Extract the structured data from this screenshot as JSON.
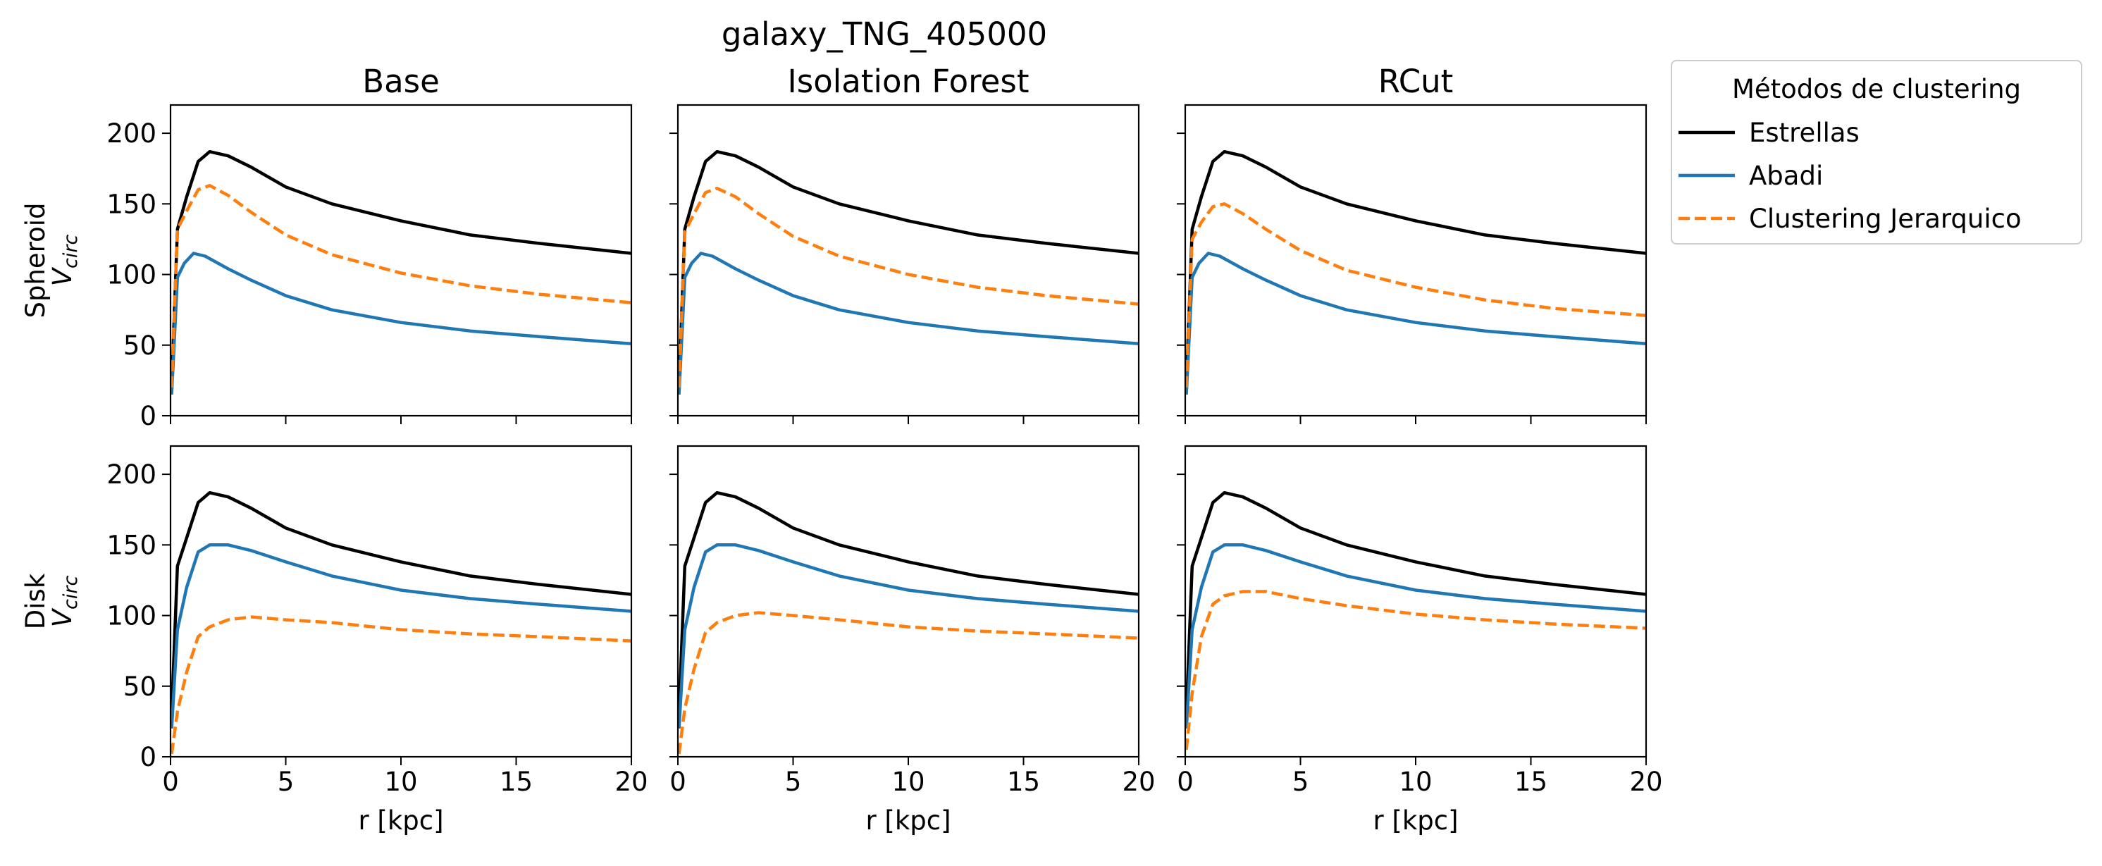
{
  "suptitle": "galaxy_TNG_405000",
  "legend": {
    "title": "Métodos de clustering",
    "placement": "outside-right-top",
    "entries": [
      {
        "label": "Estrellas",
        "color": "#000000",
        "style": "solid"
      },
      {
        "label": "Abadi",
        "color": "#1f77b4",
        "style": "solid"
      },
      {
        "label": "Clustering Jerarquico",
        "color": "#ff7f0e",
        "style": "dashed"
      }
    ]
  },
  "columns": [
    "Base",
    "Isolation Forest",
    "RCut"
  ],
  "rows": [
    {
      "label": "Spheroid",
      "ylabel_math": "V",
      "ylabel_sub": "circ"
    },
    {
      "label": "Disk",
      "ylabel_math": "V",
      "ylabel_sub": "circ"
    }
  ],
  "xlabel": "r [kpc]",
  "chart_data": {
    "type": "line",
    "layout": "2x3 subplots, shared axes",
    "xlim": [
      0,
      20
    ],
    "ylim": [
      0,
      220
    ],
    "xticks": [
      0,
      5,
      10,
      15,
      20
    ],
    "yticks": [
      0,
      50,
      100,
      150,
      200
    ],
    "grid": false,
    "panels": [
      {
        "row": "Spheroid",
        "column": "Base",
        "series": [
          {
            "name": "Estrellas",
            "x": [
              0.05,
              0.3,
              0.7,
              1.2,
              1.7,
              2.5,
              3.5,
              5,
              7,
              10,
              13,
              16,
              20
            ],
            "values": [
              20,
              132,
              155,
              180,
              187,
              184,
              176,
              162,
              150,
              138,
              128,
              122,
              115
            ]
          },
          {
            "name": "Abadi",
            "x": [
              0.05,
              0.3,
              0.6,
              1.0,
              1.5,
              2.5,
              3.5,
              5,
              7,
              10,
              13,
              16,
              20
            ],
            "values": [
              15,
              98,
              108,
              115,
              113,
              104,
              96,
              85,
              75,
              66,
              60,
              56,
              51
            ]
          },
          {
            "name": "Clustering Jerarquico",
            "x": [
              0.05,
              0.3,
              0.7,
              1.2,
              1.7,
              2.5,
              3.5,
              5,
              7,
              10,
              13,
              16,
              20
            ],
            "values": [
              20,
              132,
              145,
              160,
              163,
              156,
              144,
              128,
              114,
              101,
              92,
              86,
              80
            ]
          }
        ]
      },
      {
        "row": "Spheroid",
        "column": "Isolation Forest",
        "series": [
          {
            "name": "Estrellas",
            "x": [
              0.05,
              0.3,
              0.7,
              1.2,
              1.7,
              2.5,
              3.5,
              5,
              7,
              10,
              13,
              16,
              20
            ],
            "values": [
              20,
              132,
              155,
              180,
              187,
              184,
              176,
              162,
              150,
              138,
              128,
              122,
              115
            ]
          },
          {
            "name": "Abadi",
            "x": [
              0.05,
              0.3,
              0.6,
              1.0,
              1.5,
              2.5,
              3.5,
              5,
              7,
              10,
              13,
              16,
              20
            ],
            "values": [
              15,
              98,
              108,
              115,
              113,
              104,
              96,
              85,
              75,
              66,
              60,
              56,
              51
            ]
          },
          {
            "name": "Clustering Jerarquico",
            "x": [
              0.05,
              0.3,
              0.7,
              1.2,
              1.7,
              2.5,
              3.5,
              5,
              7,
              10,
              13,
              16,
              20
            ],
            "values": [
              20,
              130,
              143,
              158,
              161,
              155,
              143,
              127,
              113,
              100,
              91,
              85,
              79
            ]
          }
        ]
      },
      {
        "row": "Spheroid",
        "column": "RCut",
        "series": [
          {
            "name": "Estrellas",
            "x": [
              0.05,
              0.3,
              0.7,
              1.2,
              1.7,
              2.5,
              3.5,
              5,
              7,
              10,
              13,
              16,
              20
            ],
            "values": [
              20,
              132,
              155,
              180,
              187,
              184,
              176,
              162,
              150,
              138,
              128,
              122,
              115
            ]
          },
          {
            "name": "Abadi",
            "x": [
              0.05,
              0.3,
              0.6,
              1.0,
              1.5,
              2.5,
              3.5,
              5,
              7,
              10,
              13,
              16,
              20
            ],
            "values": [
              15,
              98,
              108,
              115,
              113,
              104,
              96,
              85,
              75,
              66,
              60,
              56,
              51
            ]
          },
          {
            "name": "Clustering Jerarquico",
            "x": [
              0.05,
              0.3,
              0.7,
              1.2,
              1.7,
              2.5,
              3.5,
              5,
              7,
              10,
              13,
              16,
              20
            ],
            "values": [
              20,
              125,
              137,
              148,
              150,
              143,
              132,
              117,
              103,
              91,
              82,
              76,
              71
            ]
          }
        ]
      },
      {
        "row": "Disk",
        "column": "Base",
        "series": [
          {
            "name": "Estrellas",
            "x": [
              0.05,
              0.3,
              0.7,
              1.2,
              1.7,
              2.5,
              3.5,
              5,
              7,
              10,
              13,
              16,
              20
            ],
            "values": [
              30,
              135,
              155,
              180,
              187,
              184,
              176,
              162,
              150,
              138,
              128,
              122,
              115
            ]
          },
          {
            "name": "Abadi",
            "x": [
              0.05,
              0.3,
              0.7,
              1.2,
              1.7,
              2.5,
              3.5,
              5,
              7,
              10,
              13,
              16,
              20
            ],
            "values": [
              20,
              90,
              120,
              145,
              150,
              150,
              146,
              138,
              128,
              118,
              112,
              108,
              103
            ]
          },
          {
            "name": "Clustering Jerarquico",
            "x": [
              0.05,
              0.3,
              0.7,
              1.2,
              1.7,
              2.5,
              3.5,
              5,
              7,
              10,
              13,
              16,
              20
            ],
            "values": [
              2,
              32,
              60,
              85,
              92,
              97,
              99,
              97,
              95,
              90,
              87,
              85,
              82
            ]
          }
        ]
      },
      {
        "row": "Disk",
        "column": "Isolation Forest",
        "series": [
          {
            "name": "Estrellas",
            "x": [
              0.05,
              0.3,
              0.7,
              1.2,
              1.7,
              2.5,
              3.5,
              5,
              7,
              10,
              13,
              16,
              20
            ],
            "values": [
              30,
              135,
              155,
              180,
              187,
              184,
              176,
              162,
              150,
              138,
              128,
              122,
              115
            ]
          },
          {
            "name": "Abadi",
            "x": [
              0.05,
              0.3,
              0.7,
              1.2,
              1.7,
              2.5,
              3.5,
              5,
              7,
              10,
              13,
              16,
              20
            ],
            "values": [
              20,
              90,
              120,
              145,
              150,
              150,
              146,
              138,
              128,
              118,
              112,
              108,
              103
            ]
          },
          {
            "name": "Clustering Jerarquico",
            "x": [
              0.05,
              0.3,
              0.7,
              1.2,
              1.7,
              2.5,
              3.5,
              5,
              7,
              10,
              13,
              16,
              20
            ],
            "values": [
              2,
              34,
              62,
              88,
              95,
              100,
              102,
              100,
              97,
              92,
              89,
              87,
              84
            ]
          }
        ]
      },
      {
        "row": "Disk",
        "column": "RCut",
        "series": [
          {
            "name": "Estrellas",
            "x": [
              0.05,
              0.3,
              0.7,
              1.2,
              1.7,
              2.5,
              3.5,
              5,
              7,
              10,
              13,
              16,
              20
            ],
            "values": [
              30,
              135,
              155,
              180,
              187,
              184,
              176,
              162,
              150,
              138,
              128,
              122,
              115
            ]
          },
          {
            "name": "Abadi",
            "x": [
              0.05,
              0.3,
              0.7,
              1.2,
              1.7,
              2.5,
              3.5,
              5,
              7,
              10,
              13,
              16,
              20
            ],
            "values": [
              20,
              90,
              120,
              145,
              150,
              150,
              146,
              138,
              128,
              118,
              112,
              108,
              103
            ]
          },
          {
            "name": "Clustering Jerarquico",
            "x": [
              0.05,
              0.3,
              0.7,
              1.2,
              1.7,
              2.5,
              3.5,
              5,
              7,
              10,
              13,
              16,
              20
            ],
            "values": [
              5,
              45,
              85,
              108,
              114,
              117,
              117,
              112,
              107,
              101,
              97,
              94,
              91
            ]
          }
        ]
      }
    ]
  }
}
